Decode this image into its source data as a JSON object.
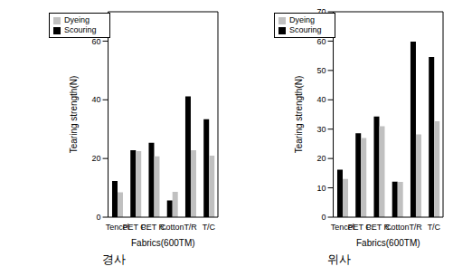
{
  "chart_data": [
    {
      "type": "bar",
      "title": "경사",
      "x_label": "Fabrics(600TM)",
      "y_label": "Tearing strength(N)",
      "categories": [
        "Tencel",
        "PET C.",
        "PET R.",
        "Cotton",
        "T/R",
        "T/C"
      ],
      "series": [
        {
          "name": "Scouring",
          "color": "#000000",
          "values": [
            12.3,
            22.8,
            25.4,
            5.7,
            41.2,
            33.4
          ]
        },
        {
          "name": "Dyeing",
          "color": "#c0c0c0",
          "values": [
            8.5,
            22.5,
            20.7,
            8.6,
            22.8,
            21.0
          ]
        }
      ],
      "ylim": [
        0,
        70
      ],
      "yticks": [
        0,
        20,
        40,
        60
      ],
      "legend": "upper left"
    },
    {
      "type": "bar",
      "title": "위사",
      "x_label": "Fabrics(600TM)",
      "y_label": "Tearing strength(N)",
      "categories": [
        "Tencel",
        "PET C.",
        "PET R.",
        "Cotton",
        "T/R",
        "T/C"
      ],
      "series": [
        {
          "name": "Scouring",
          "color": "#000000",
          "values": [
            16.2,
            28.6,
            34.3,
            12.1,
            59.8,
            54.6
          ]
        },
        {
          "name": "Dyeing",
          "color": "#c0c0c0",
          "values": [
            13.0,
            27.0,
            31.0,
            12.0,
            28.2,
            32.7
          ]
        }
      ],
      "ylim": [
        0,
        70
      ],
      "yticks": [
        0,
        10,
        20,
        30,
        40,
        50,
        60,
        70
      ],
      "legend": "upper left"
    }
  ]
}
